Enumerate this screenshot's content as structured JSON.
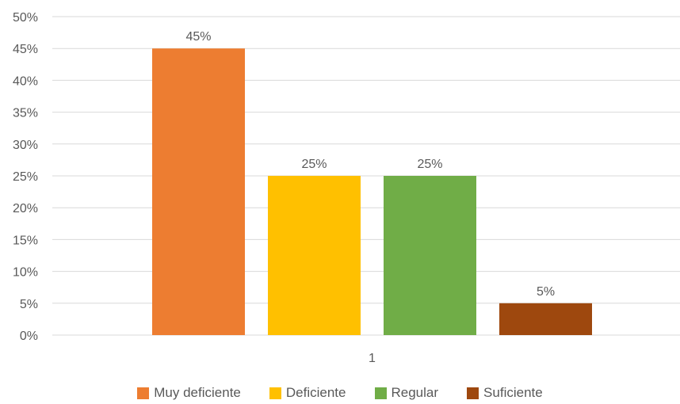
{
  "chart_data": {
    "type": "bar",
    "categories": [
      "1"
    ],
    "series": [
      {
        "name": "Muy deficiente",
        "values": [
          45
        ],
        "color": "#ED7D31",
        "label": "45%"
      },
      {
        "name": "Deficiente",
        "values": [
          25
        ],
        "color": "#FFC000",
        "label": "25%"
      },
      {
        "name": "Regular",
        "values": [
          25
        ],
        "color": "#70AD47",
        "label": "25%"
      },
      {
        "name": "Suficiente",
        "values": [
          5
        ],
        "color": "#9E480E",
        "label": "5%"
      }
    ],
    "ylim": [
      0,
      50
    ],
    "yticks": [
      0,
      5,
      10,
      15,
      20,
      25,
      30,
      35,
      40,
      45,
      50
    ],
    "ytick_labels": [
      "0%",
      "5%",
      "10%",
      "15%",
      "20%",
      "25%",
      "30%",
      "35%",
      "40%",
      "45%",
      "50%"
    ],
    "grid": true,
    "legend": "bottom",
    "grid_color": "#D9D9D9"
  }
}
